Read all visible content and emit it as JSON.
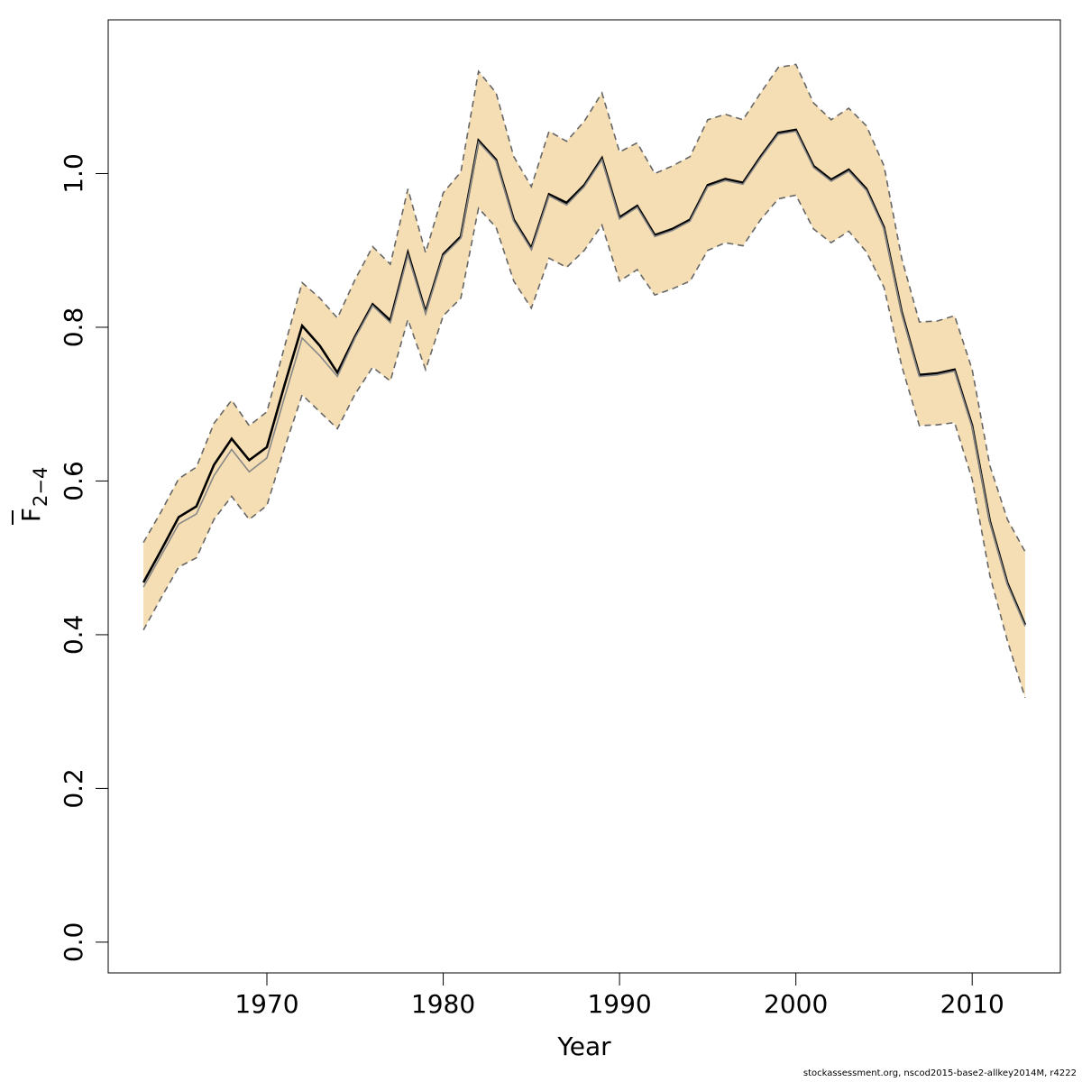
{
  "chart_data": {
    "type": "line",
    "xlabel": "Year",
    "ylabel": {
      "base": "F",
      "subscript": "2−4"
    },
    "xlim": [
      1961,
      2015
    ],
    "ylim": [
      -0.04,
      1.2
    ],
    "x_ticks": [
      1970,
      1980,
      1990,
      2000,
      2010
    ],
    "y_ticks": [
      0.0,
      0.2,
      0.4,
      0.6,
      0.8,
      1.0
    ],
    "y_tick_labels": [
      "0.0",
      "0.2",
      "0.4",
      "0.6",
      "0.8",
      "1.0"
    ],
    "band_color": "#f5deb3",
    "x": [
      1963,
      1964,
      1965,
      1966,
      1967,
      1968,
      1969,
      1970,
      1971,
      1972,
      1973,
      1974,
      1975,
      1976,
      1977,
      1978,
      1979,
      1980,
      1981,
      1982,
      1983,
      1984,
      1985,
      1986,
      1987,
      1988,
      1989,
      1990,
      1991,
      1992,
      1993,
      1994,
      1995,
      1996,
      1997,
      1998,
      1999,
      2000,
      2001,
      2002,
      2003,
      2004,
      2005,
      2006,
      2007,
      2008,
      2009,
      2010,
      2011,
      2012,
      2013
    ],
    "estimate": [
      0.468,
      0.51,
      0.553,
      0.567,
      0.621,
      0.655,
      0.627,
      0.644,
      0.725,
      0.802,
      0.776,
      0.741,
      0.788,
      0.83,
      0.809,
      0.897,
      0.82,
      0.895,
      0.918,
      1.043,
      1.018,
      0.94,
      0.903,
      0.973,
      0.962,
      0.985,
      1.02,
      0.943,
      0.958,
      0.92,
      0.928,
      0.94,
      0.985,
      0.993,
      0.988,
      1.022,
      1.053,
      1.057,
      1.01,
      0.992,
      1.005,
      0.98,
      0.93,
      0.82,
      0.738,
      0.74,
      0.745,
      0.672,
      0.548,
      0.467,
      0.413
    ],
    "estimate_alt": [
      0.462,
      0.503,
      0.544,
      0.557,
      0.607,
      0.641,
      0.612,
      0.63,
      0.709,
      0.786,
      0.763,
      0.736,
      0.786,
      0.828,
      0.806,
      0.894,
      0.818,
      0.893,
      0.916,
      1.041,
      1.016,
      0.938,
      0.901,
      0.971,
      0.959,
      0.983,
      1.018,
      0.941,
      0.956,
      0.918,
      0.926,
      0.938,
      0.983,
      0.991,
      0.986,
      1.02,
      1.051,
      1.055,
      1.008,
      0.99,
      1.003,
      0.978,
      0.928,
      0.818,
      0.736,
      0.738,
      0.743,
      0.67,
      0.546,
      0.465,
      0.411
    ],
    "upper": [
      0.52,
      0.56,
      0.603,
      0.618,
      0.675,
      0.705,
      0.672,
      0.69,
      0.775,
      0.858,
      0.838,
      0.812,
      0.862,
      0.905,
      0.882,
      0.98,
      0.897,
      0.975,
      1.002,
      1.133,
      1.105,
      1.022,
      0.983,
      1.055,
      1.042,
      1.068,
      1.105,
      1.028,
      1.04,
      1.0,
      1.01,
      1.022,
      1.07,
      1.077,
      1.07,
      1.105,
      1.138,
      1.142,
      1.092,
      1.07,
      1.085,
      1.062,
      1.01,
      0.89,
      0.807,
      0.808,
      0.815,
      0.745,
      0.62,
      0.55,
      0.508
    ],
    "lower": [
      0.406,
      0.448,
      0.488,
      0.5,
      0.55,
      0.58,
      0.55,
      0.568,
      0.643,
      0.712,
      0.69,
      0.668,
      0.713,
      0.748,
      0.73,
      0.81,
      0.745,
      0.815,
      0.838,
      0.955,
      0.93,
      0.86,
      0.825,
      0.89,
      0.878,
      0.9,
      0.933,
      0.86,
      0.875,
      0.842,
      0.85,
      0.86,
      0.9,
      0.91,
      0.906,
      0.94,
      0.967,
      0.972,
      0.928,
      0.91,
      0.925,
      0.898,
      0.852,
      0.75,
      0.672,
      0.673,
      0.676,
      0.602,
      0.477,
      0.392,
      0.318
    ]
  },
  "footer": "stockassessment.org, nscod2015-base2-allkey2014M, r4222"
}
